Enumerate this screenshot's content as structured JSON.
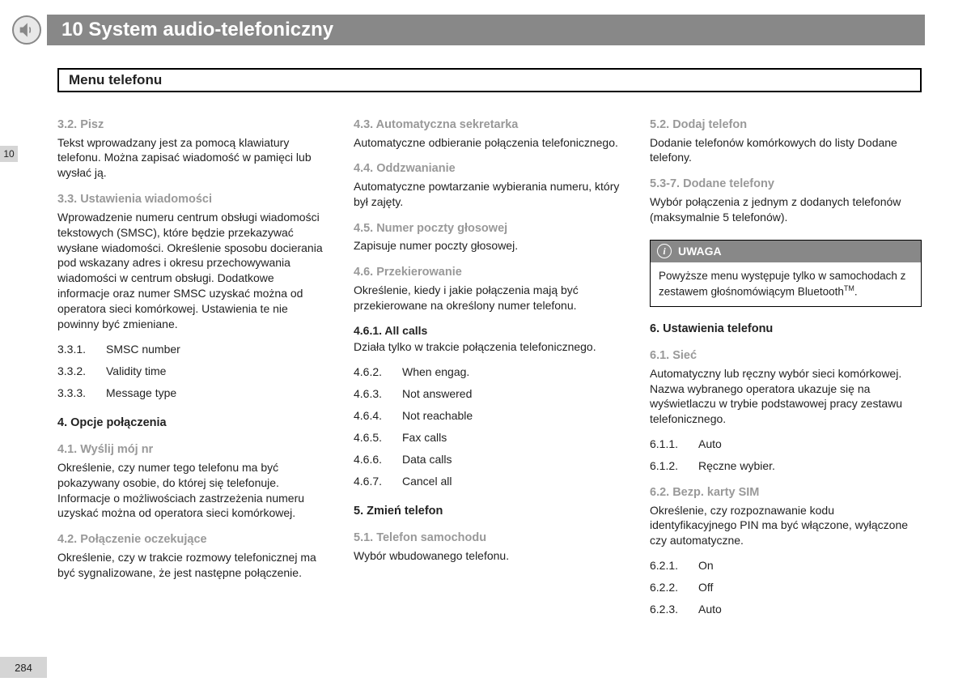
{
  "header": {
    "chapter_number": "10",
    "title": "10 System audio-telefoniczny",
    "side_tab": "10",
    "subtitle": "Menu telefonu",
    "page_number": "284"
  },
  "columns": [
    {
      "blocks": [
        {
          "type": "h",
          "first": true,
          "text": "3.2. Pisz"
        },
        {
          "type": "p",
          "text": "Tekst wprowadzany jest za pomocą klawiatury telefonu. Można zapisać wiadomość w pamięci lub wysłać ją."
        },
        {
          "type": "h",
          "text": "3.3. Ustawienia wiadomości"
        },
        {
          "type": "p",
          "text": "Wprowadzenie numeru centrum obsługi wiadomości tekstowych (SMSC), które będzie przekazywać wysłane wiadomości. Określenie sposobu docierania pod wskazany adres i okresu przechowywania wiadomości w centrum obsługi. Dodatkowe informacje oraz numer SMSC uzyskać można od operatora sieci komórkowej. Ustawienia te nie powinny być zmieniane."
        },
        {
          "type": "list",
          "items": [
            {
              "num": "3.3.1.",
              "label": "SMSC number"
            },
            {
              "num": "3.3.2.",
              "label": "Validity time"
            },
            {
              "num": "3.3.3.",
              "label": "Message type"
            }
          ]
        },
        {
          "type": "main",
          "text": "4. Opcje połączenia"
        },
        {
          "type": "h",
          "text": "4.1. Wyślij mój nr"
        },
        {
          "type": "p",
          "text": "Określenie, czy numer tego telefonu ma być pokazywany osobie, do której się telefonuje. Informacje o możliwościach zastrzeżenia numeru uzyskać można od operatora sieci komórkowej."
        },
        {
          "type": "h",
          "text": "4.2. Połączenie oczekujące"
        },
        {
          "type": "p",
          "text": "Określenie, czy w trakcie rozmowy telefonicznej ma być sygnalizowane, że jest następne połączenie."
        }
      ]
    },
    {
      "blocks": [
        {
          "type": "h",
          "first": true,
          "text": "4.3. Automatyczna sekretarka"
        },
        {
          "type": "p",
          "text": "Automatyczne odbieranie połączenia telefonicznego."
        },
        {
          "type": "h",
          "text": "4.4. Oddzwanianie"
        },
        {
          "type": "p",
          "text": "Automatyczne powtarzanie wybierania numeru, który był zajęty."
        },
        {
          "type": "h",
          "text": "4.5. Numer poczty głosowej"
        },
        {
          "type": "p",
          "text": "Zapisuje numer poczty głosowej."
        },
        {
          "type": "h",
          "text": "4.6. Przekierowanie"
        },
        {
          "type": "p",
          "text": "Określenie, kiedy i jakie połączenia mają być przekierowane na określony numer telefonu."
        },
        {
          "type": "sub",
          "text": "4.6.1.    All calls"
        },
        {
          "type": "p",
          "text": "Działa tylko w trakcie połączenia telefonicznego."
        },
        {
          "type": "list",
          "items": [
            {
              "num": "4.6.2.",
              "label": "When engag."
            },
            {
              "num": "4.6.3.",
              "label": "Not answered"
            },
            {
              "num": "4.6.4.",
              "label": "Not reachable"
            },
            {
              "num": "4.6.5.",
              "label": "Fax calls"
            },
            {
              "num": "4.6.6.",
              "label": "Data calls"
            },
            {
              "num": "4.6.7.",
              "label": "Cancel all"
            }
          ]
        },
        {
          "type": "main",
          "text": "5. Zmień telefon"
        },
        {
          "type": "h",
          "text": "5.1. Telefon samochodu"
        },
        {
          "type": "p",
          "text": "Wybór wbudowanego telefonu."
        }
      ]
    },
    {
      "blocks": [
        {
          "type": "h",
          "first": true,
          "text": "5.2. Dodaj telefon"
        },
        {
          "type": "p",
          "text": "Dodanie telefonów komórkowych do listy Dodane telefony."
        },
        {
          "type": "h",
          "text": "5.3-7. Dodane telefony"
        },
        {
          "type": "p",
          "text": "Wybór połączenia z jednym z dodanych telefonów (maksymalnie 5 telefonów)."
        },
        {
          "type": "note",
          "title": "UWAGA",
          "body": "Powyższe menu występuje tylko w samochodach z zestawem głośnomówiącym Bluetooth",
          "tm": "TM"
        },
        {
          "type": "main",
          "text": "6. Ustawienia telefonu"
        },
        {
          "type": "h",
          "text": "6.1. Sieć"
        },
        {
          "type": "p",
          "text": "Automatyczny lub ręczny wybór sieci komórkowej. Nazwa wybranego operatora ukazuje się na wyświetlaczu w trybie podstawowej pracy zestawu telefonicznego."
        },
        {
          "type": "list",
          "items": [
            {
              "num": "6.1.1.",
              "label": "Auto"
            },
            {
              "num": "6.1.2.",
              "label": "Ręczne wybier."
            }
          ]
        },
        {
          "type": "h",
          "text": "6.2. Bezp. karty SIM"
        },
        {
          "type": "p",
          "text": "Określenie, czy rozpoznawanie kodu identyfikacyjnego PIN ma być włączone, wyłączone czy automatyczne."
        },
        {
          "type": "list",
          "items": [
            {
              "num": "6.2.1.",
              "label": "On"
            },
            {
              "num": "6.2.2.",
              "label": "Off"
            },
            {
              "num": "6.2.3.",
              "label": "Auto"
            }
          ]
        }
      ]
    }
  ]
}
